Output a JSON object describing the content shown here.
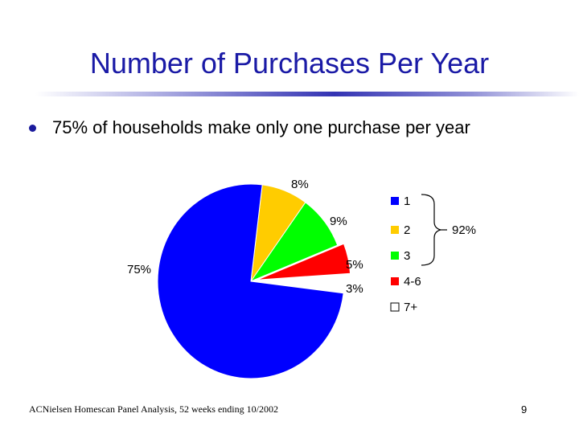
{
  "title": "Number of Purchases Per Year",
  "bullet": "75% of households make only one purchase per year",
  "footnote": "ACNielsen Homescan Panel Analysis, 52 weeks ending 10/2002",
  "page_number": "9",
  "chart_data": {
    "type": "pie",
    "slices": [
      {
        "label": "1",
        "value": 75,
        "value_label": "75%",
        "color": "#0000ff"
      },
      {
        "label": "2",
        "value": 8,
        "value_label": "8%",
        "color": "#ffcc00"
      },
      {
        "label": "3",
        "value": 9,
        "value_label": "9%",
        "color": "#00ff00"
      },
      {
        "label": "4-6",
        "value": 5,
        "value_label": "5%",
        "color": "#ff0000"
      },
      {
        "label": "7+",
        "value": 3,
        "value_label": "3%",
        "color": "#ffffff"
      }
    ],
    "bracket_label": "92%",
    "bracket_covers": [
      "1",
      "2",
      "3"
    ],
    "legend_position": "right"
  }
}
